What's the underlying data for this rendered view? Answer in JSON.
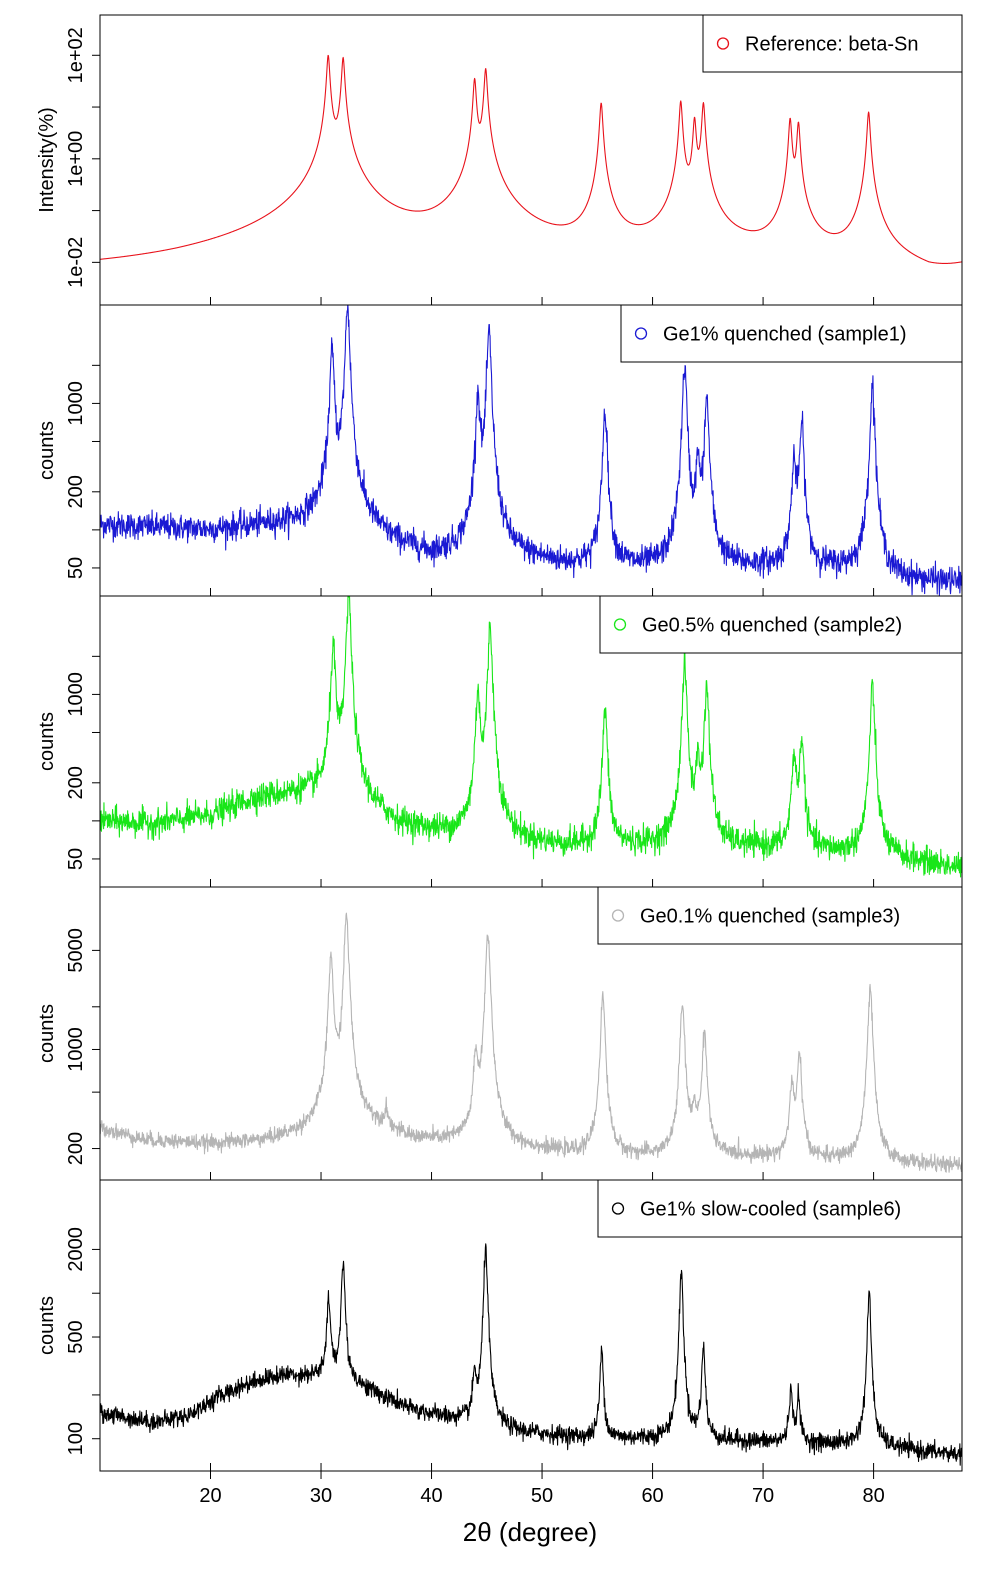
{
  "figure": {
    "xlabel": "2θ (degree)",
    "xlim": [
      10,
      88
    ],
    "x_ticks": [
      20,
      30,
      40,
      50,
      60,
      70,
      80
    ],
    "x_tick_labels": [
      "20",
      "30",
      "40",
      "50",
      "60",
      "70",
      "80"
    ]
  },
  "chart_data": [
    {
      "type": "line",
      "ylabel": "Intensity(%)",
      "y_scale": "log",
      "ylim": [
        0.0015,
        600
      ],
      "y_ticks": [
        0.01,
        0.1,
        1,
        10,
        100
      ],
      "y_tick_labels": [
        "1e-02",
        "",
        "1e+00",
        "",
        "1e+02"
      ],
      "legend": {
        "label": "Reference: beta-Sn",
        "position": "top-right"
      },
      "color": "#e8121b",
      "noise": 0,
      "series": [
        {
          "name": "Reference: beta-Sn",
          "baseline": [
            [
              10,
              0.004
            ],
            [
              17,
              0.0036
            ],
            [
              24,
              0.0042
            ],
            [
              38,
              0.006
            ],
            [
              51,
              0.004
            ],
            [
              58,
              0.006
            ],
            [
              68,
              0.007
            ],
            [
              77,
              0.006
            ],
            [
              85,
              0.0024
            ],
            [
              88,
              0.0055
            ]
          ],
          "peaks": [
            {
              "x": 30.65,
              "height": 100,
              "width": 0.12
            },
            {
              "x": 32.0,
              "height": 90,
              "width": 0.12
            },
            {
              "x": 43.9,
              "height": 35,
              "width": 0.12
            },
            {
              "x": 44.9,
              "height": 55,
              "width": 0.12
            },
            {
              "x": 55.35,
              "height": 12,
              "width": 0.12
            },
            {
              "x": 62.55,
              "height": 13,
              "width": 0.12
            },
            {
              "x": 63.8,
              "height": 6,
              "width": 0.12
            },
            {
              "x": 64.6,
              "height": 12,
              "width": 0.12
            },
            {
              "x": 72.45,
              "height": 6,
              "width": 0.12
            },
            {
              "x": 73.2,
              "height": 5,
              "width": 0.12
            },
            {
              "x": 79.55,
              "height": 8,
              "width": 0.12
            }
          ]
        }
      ]
    },
    {
      "type": "line",
      "ylabel": "counts",
      "y_scale": "log",
      "ylim": [
        30,
        6000
      ],
      "y_ticks": [
        50,
        100,
        200,
        500,
        1000,
        2000
      ],
      "y_tick_labels": [
        "50",
        "",
        "200",
        "",
        "1000",
        ""
      ],
      "legend": {
        "label": "Ge1% quenched (sample1)",
        "position": "top-right"
      },
      "color": "#1a19d3",
      "noise": 0.12,
      "series": [
        {
          "name": "Ge1% quenched (sample1)",
          "baseline": [
            [
              10,
              110
            ],
            [
              20,
              100
            ],
            [
              28,
              115
            ],
            [
              30,
              130
            ],
            [
              33,
              120
            ],
            [
              36,
              80
            ],
            [
              40,
              60
            ],
            [
              44,
              65
            ],
            [
              46,
              62
            ],
            [
              52,
              52
            ],
            [
              60,
              48
            ],
            [
              70,
              50
            ],
            [
              78,
              48
            ],
            [
              82,
              40
            ],
            [
              88,
              38
            ]
          ],
          "peaks": [
            {
              "x": 31.0,
              "height": 2500,
              "width": 0.18
            },
            {
              "x": 32.4,
              "height": 5800,
              "width": 0.18
            },
            {
              "x": 44.2,
              "height": 1100,
              "width": 0.18
            },
            {
              "x": 45.2,
              "height": 3600,
              "width": 0.18
            },
            {
              "x": 55.7,
              "height": 850,
              "width": 0.18
            },
            {
              "x": 62.9,
              "height": 1900,
              "width": 0.18
            },
            {
              "x": 64.1,
              "height": 280,
              "width": 0.18
            },
            {
              "x": 64.9,
              "height": 1050,
              "width": 0.18
            },
            {
              "x": 72.8,
              "height": 300,
              "width": 0.18
            },
            {
              "x": 73.5,
              "height": 650,
              "width": 0.18
            },
            {
              "x": 79.9,
              "height": 1350,
              "width": 0.18
            }
          ]
        }
      ]
    },
    {
      "type": "line",
      "ylabel": "counts",
      "y_scale": "log",
      "ylim": [
        30,
        6000
      ],
      "y_ticks": [
        50,
        100,
        200,
        500,
        1000,
        2000
      ],
      "y_tick_labels": [
        "50",
        "",
        "200",
        "",
        "1000",
        ""
      ],
      "legend": {
        "label": "Ge0.5% quenched (sample2)",
        "position": "top-right"
      },
      "color": "#19e619",
      "noise": 0.12,
      "series": [
        {
          "name": "Ge0.5% quenched (sample2)",
          "baseline": [
            [
              10,
              100
            ],
            [
              15,
              95
            ],
            [
              20,
              110
            ],
            [
              24,
              150
            ],
            [
              28,
              165
            ],
            [
              30,
              160
            ],
            [
              33,
              140
            ],
            [
              37,
              90
            ],
            [
              42,
              75
            ],
            [
              46,
              68
            ],
            [
              52,
              62
            ],
            [
              60,
              62
            ],
            [
              70,
              60
            ],
            [
              78,
              55
            ],
            [
              82,
              50
            ],
            [
              88,
              42
            ]
          ],
          "peaks": [
            {
              "x": 31.1,
              "height": 2300,
              "width": 0.18
            },
            {
              "x": 32.5,
              "height": 6000,
              "width": 0.18
            },
            {
              "x": 44.2,
              "height": 1000,
              "width": 0.18
            },
            {
              "x": 45.3,
              "height": 3400,
              "width": 0.18
            },
            {
              "x": 55.7,
              "height": 720,
              "width": 0.18
            },
            {
              "x": 62.9,
              "height": 1700,
              "width": 0.18
            },
            {
              "x": 64.1,
              "height": 220,
              "width": 0.18
            },
            {
              "x": 64.9,
              "height": 1100,
              "width": 0.18
            },
            {
              "x": 72.8,
              "height": 280,
              "width": 0.18
            },
            {
              "x": 73.5,
              "height": 400,
              "width": 0.18
            },
            {
              "x": 79.9,
              "height": 1100,
              "width": 0.18
            }
          ]
        }
      ]
    },
    {
      "type": "line",
      "ylabel": "counts",
      "y_scale": "log",
      "ylim": [
        120,
        14000
      ],
      "y_ticks": [
        200,
        500,
        1000,
        2000,
        5000
      ],
      "y_tick_labels": [
        "200",
        "",
        "1000",
        "",
        "5000"
      ],
      "legend": {
        "label": "Ge0.1% quenched (sample3)",
        "position": "top-right"
      },
      "color": "#b5b5b5",
      "noise": 0.06,
      "series": [
        {
          "name": "Ge0.1% quenched (sample3)",
          "baseline": [
            [
              10,
              280
            ],
            [
              14,
              230
            ],
            [
              20,
              215
            ],
            [
              25,
              225
            ],
            [
              28,
              250
            ],
            [
              30,
              290
            ],
            [
              34,
              300
            ],
            [
              38,
              230
            ],
            [
              44,
              210
            ],
            [
              48,
              200
            ],
            [
              55,
              175
            ],
            [
              62,
              175
            ],
            [
              70,
              175
            ],
            [
              80,
              160
            ],
            [
              88,
              150
            ]
          ],
          "peaks": [
            {
              "x": 30.9,
              "height": 4200,
              "width": 0.2
            },
            {
              "x": 32.3,
              "height": 8600,
              "width": 0.2
            },
            {
              "x": 35.9,
              "height": 90,
              "width": 0.2
            },
            {
              "x": 44.0,
              "height": 600,
              "width": 0.2
            },
            {
              "x": 45.1,
              "height": 6500,
              "width": 0.2
            },
            {
              "x": 55.5,
              "height": 2200,
              "width": 0.2
            },
            {
              "x": 62.7,
              "height": 1900,
              "width": 0.2
            },
            {
              "x": 63.8,
              "height": 180,
              "width": 0.2
            },
            {
              "x": 64.7,
              "height": 1150,
              "width": 0.2
            },
            {
              "x": 72.6,
              "height": 380,
              "width": 0.2
            },
            {
              "x": 73.3,
              "height": 750,
              "width": 0.2
            },
            {
              "x": 79.7,
              "height": 2500,
              "width": 0.2
            }
          ]
        }
      ]
    },
    {
      "type": "line",
      "ylabel": "counts",
      "y_scale": "log",
      "ylim": [
        60,
        6000
      ],
      "y_ticks": [
        100,
        200,
        500,
        1000,
        2000
      ],
      "y_tick_labels": [
        "100",
        "",
        "500",
        "",
        "2000"
      ],
      "legend": {
        "label": "Ge1% slow-cooled (sample6)",
        "position": "top-right"
      },
      "color": "#000000",
      "noise": 0.07,
      "series": [
        {
          "name": "Ge1% slow-cooled (sample6)",
          "baseline": [
            [
              10,
              150
            ],
            [
              15,
              130
            ],
            [
              18,
              145
            ],
            [
              21,
              200
            ],
            [
              24,
              250
            ],
            [
              27,
              275
            ],
            [
              30,
              270
            ],
            [
              33,
              240
            ],
            [
              38,
              160
            ],
            [
              44,
              125
            ],
            [
              48,
              110
            ],
            [
              55,
              100
            ],
            [
              60,
              100
            ],
            [
              70,
              95
            ],
            [
              80,
              90
            ],
            [
              84,
              82
            ],
            [
              88,
              78
            ]
          ],
          "peaks": [
            {
              "x": 30.7,
              "height": 650,
              "width": 0.16
            },
            {
              "x": 32.0,
              "height": 1400,
              "width": 0.16
            },
            {
              "x": 43.9,
              "height": 140,
              "width": 0.16
            },
            {
              "x": 44.9,
              "height": 2000,
              "width": 0.16
            },
            {
              "x": 55.4,
              "height": 300,
              "width": 0.16
            },
            {
              "x": 62.6,
              "height": 1300,
              "width": 0.16
            },
            {
              "x": 64.6,
              "height": 320,
              "width": 0.16
            },
            {
              "x": 72.5,
              "height": 120,
              "width": 0.16
            },
            {
              "x": 73.2,
              "height": 100,
              "width": 0.16
            },
            {
              "x": 79.6,
              "height": 900,
              "width": 0.16
            }
          ]
        }
      ]
    }
  ]
}
